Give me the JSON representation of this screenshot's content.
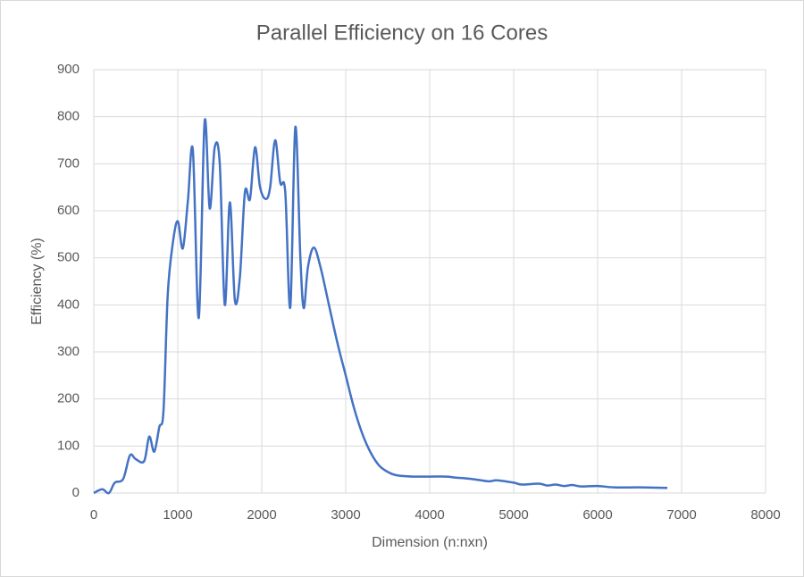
{
  "chart_data": {
    "type": "line",
    "title": "Parallel Efficiency on 16 Cores",
    "x_label": "Dimension (n:nxn)",
    "y_label": "Efficiency (%)",
    "xlim": [
      0,
      8000
    ],
    "xticks": [
      0,
      1000,
      2000,
      3000,
      4000,
      5000,
      6000,
      7000,
      8000
    ],
    "ylim": [
      0,
      900
    ],
    "yticks": [
      0,
      100,
      200,
      300,
      400,
      500,
      600,
      700,
      800,
      900
    ],
    "grid": true,
    "x": [
      0,
      100,
      180,
      250,
      350,
      430,
      500,
      600,
      660,
      720,
      780,
      830,
      880,
      940,
      1000,
      1060,
      1120,
      1180,
      1250,
      1320,
      1380,
      1440,
      1500,
      1560,
      1620,
      1680,
      1740,
      1800,
      1860,
      1920,
      1980,
      2050,
      2100,
      2160,
      2220,
      2280,
      2340,
      2400,
      2460,
      2500,
      2550,
      2620,
      2700,
      2800,
      2900,
      3000,
      3100,
      3200,
      3300,
      3400,
      3500,
      3600,
      3800,
      4000,
      4200,
      4300,
      4500,
      4700,
      4800,
      5000,
      5100,
      5300,
      5400,
      5500,
      5600,
      5700,
      5800,
      6000,
      6200,
      6500,
      6830
    ],
    "series": [
      {
        "color": "#4472c4",
        "values": [
          0,
          8,
          0,
          22,
          30,
          80,
          72,
          68,
          120,
          88,
          140,
          175,
          420,
          530,
          578,
          520,
          620,
          728,
          372,
          790,
          605,
          735,
          700,
          400,
          618,
          410,
          460,
          640,
          625,
          735,
          650,
          625,
          650,
          750,
          660,
          640,
          395,
          778,
          500,
          393,
          480,
          522,
          480,
          400,
          320,
          250,
          180,
          125,
          85,
          58,
          45,
          38,
          35,
          35,
          35,
          33,
          30,
          25,
          27,
          22,
          18,
          20,
          16,
          18,
          15,
          17,
          14,
          15,
          12,
          12,
          11
        ]
      }
    ]
  }
}
